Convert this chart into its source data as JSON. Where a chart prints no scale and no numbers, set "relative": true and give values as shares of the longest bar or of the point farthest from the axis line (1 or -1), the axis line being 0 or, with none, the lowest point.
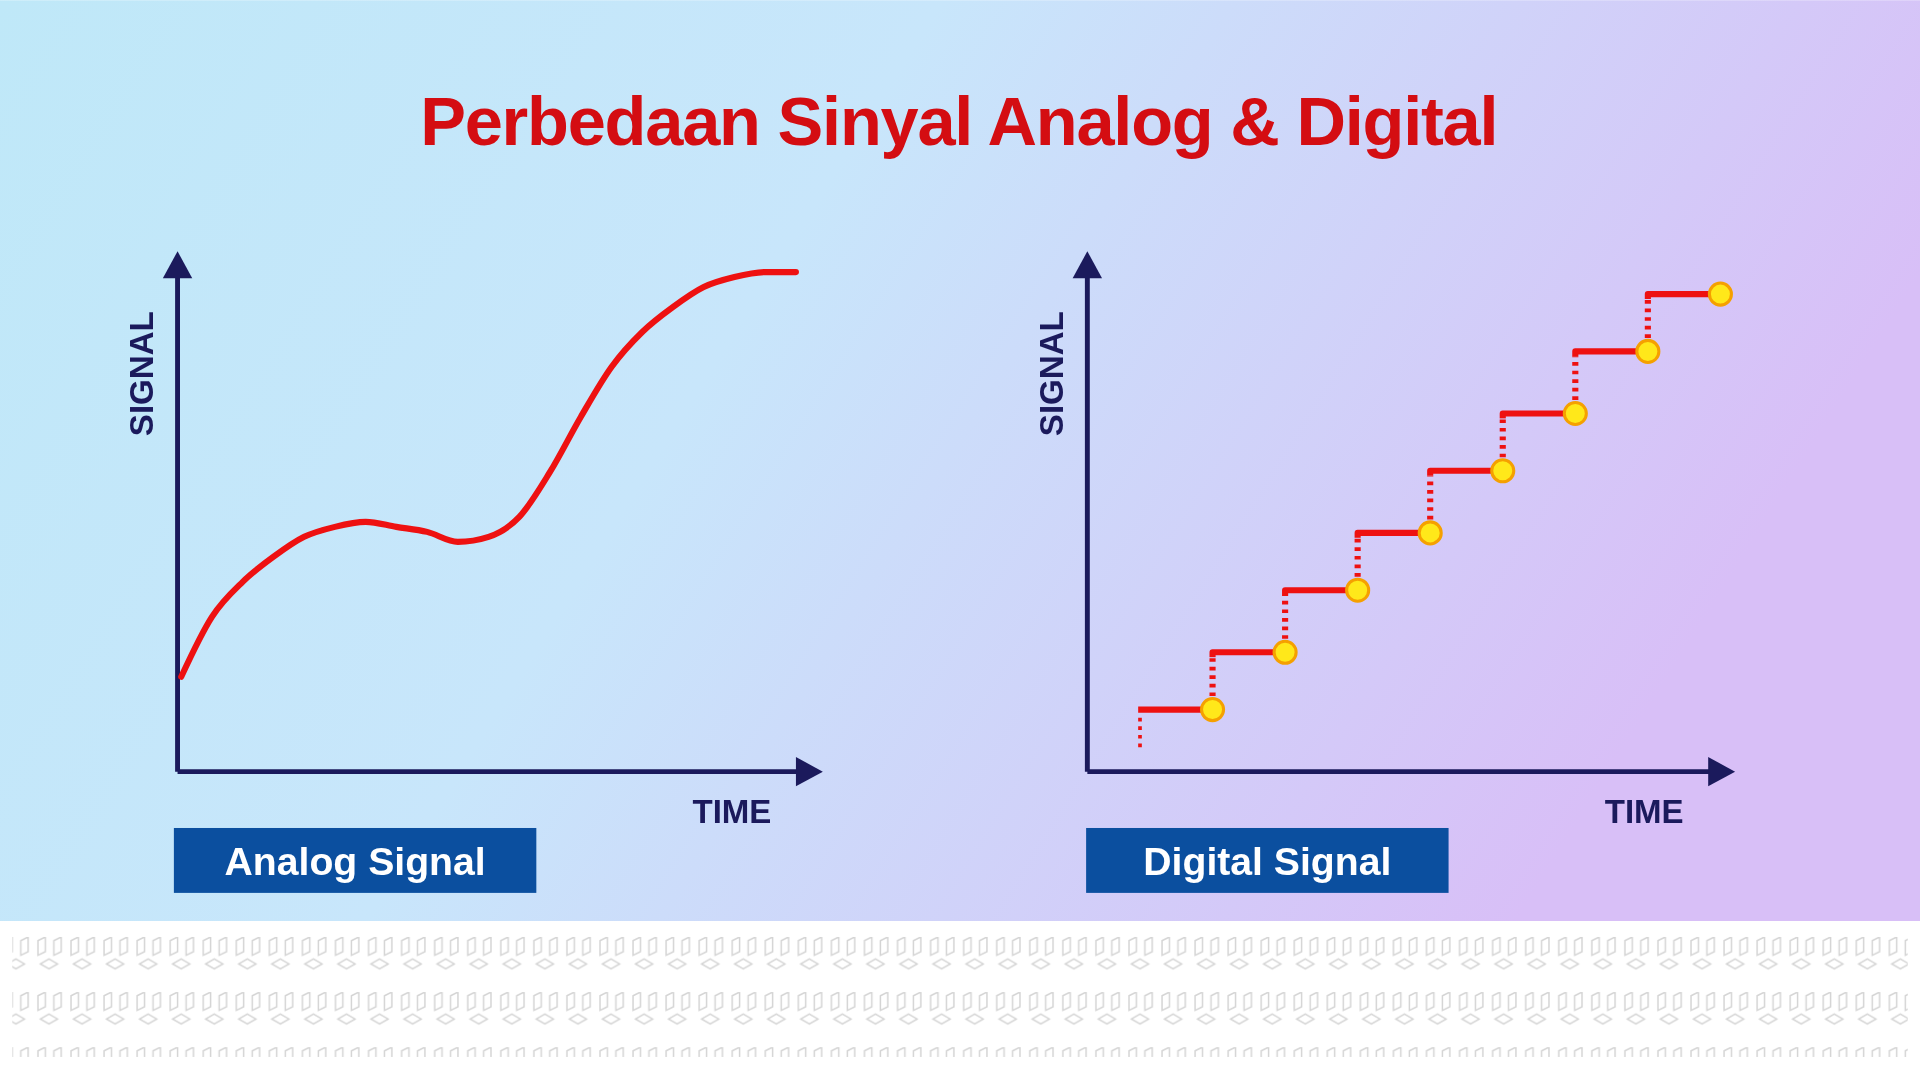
{
  "chart_data": [
    {
      "type": "other",
      "title": "Perbedaan Sinyal Analog & Digital"
    },
    {
      "type": "line",
      "title": "Analog Signal",
      "xlabel": "TIME",
      "ylabel": "SIGNAL",
      "relative": true,
      "marker": "none",
      "categories": [
        null,
        null,
        null,
        null,
        null,
        null,
        null,
        null,
        null,
        null,
        null,
        null,
        null,
        null,
        null,
        null,
        null,
        null,
        null,
        null,
        null
      ],
      "series": [
        {
          "color": "#ee1111",
          "values": [
            0.19,
            0.31,
            0.38,
            0.43,
            0.47,
            0.49,
            0.5,
            0.49,
            0.48,
            0.46,
            0.47,
            0.51,
            0.6,
            0.71,
            0.81,
            0.88,
            0.93,
            0.97,
            0.99,
            1.0,
            1.0
          ]
        }
      ]
    },
    {
      "type": "step",
      "title": "Digital Signal",
      "xlabel": "TIME",
      "ylabel": "SIGNAL",
      "relative": true,
      "marker": "circle",
      "categories": [
        null,
        null,
        null,
        null,
        null,
        null,
        null,
        null
      ],
      "series": [
        {
          "color": "#ee1111",
          "values": [
            0.13,
            0.25,
            0.38,
            0.5,
            0.63,
            0.75,
            0.88,
            1.0
          ]
        }
      ]
    }
  ]
}
